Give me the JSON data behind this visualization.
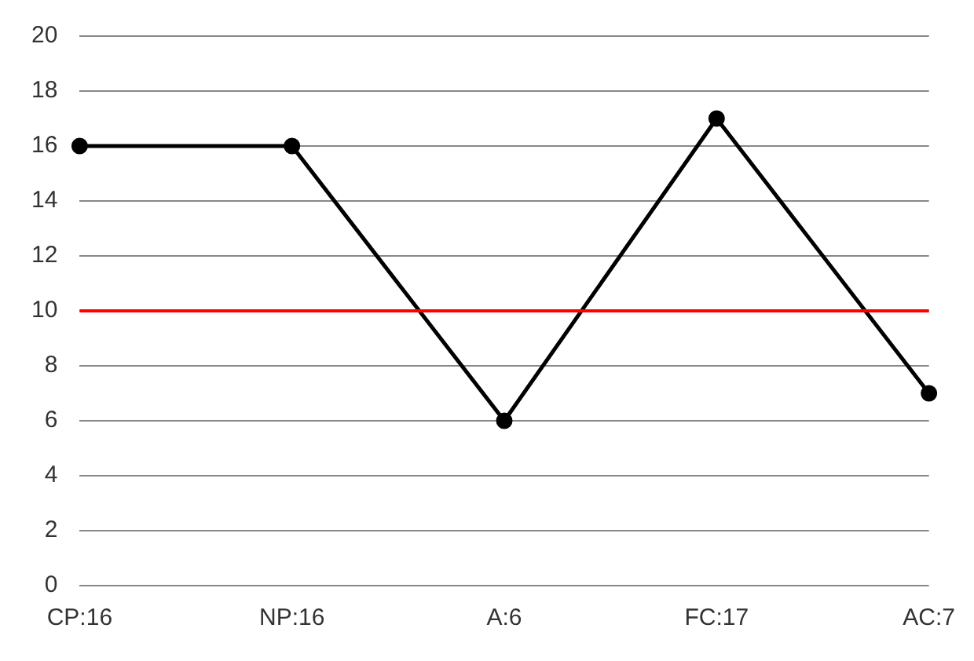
{
  "chart_data": {
    "type": "line",
    "categories": [
      "CP:16",
      "NP:16",
      "A:6",
      "FC:17",
      "AC:7"
    ],
    "series": [
      {
        "color": "#000000",
        "values": [
          16,
          16,
          6,
          17,
          7
        ]
      }
    ],
    "ylim": [
      0,
      20
    ],
    "yticks": [
      0,
      2,
      4,
      6,
      8,
      10,
      12,
      14,
      16,
      18,
      20
    ],
    "grid": "y",
    "legend": false,
    "marker": "circle",
    "line_style": "solid",
    "ref_lines": [
      {
        "axis": "y",
        "value": 10,
        "color": "#ff0000"
      }
    ]
  }
}
